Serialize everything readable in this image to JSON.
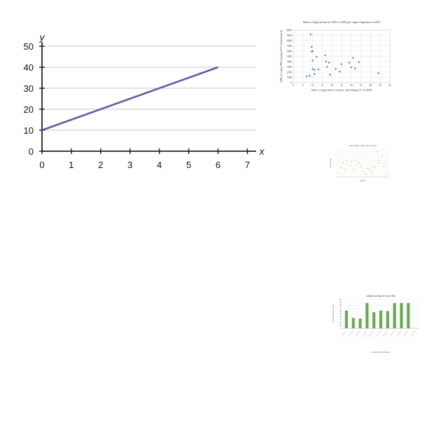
{
  "chart_data": [
    {
      "type": "line",
      "title": "",
      "xlabel": "x",
      "ylabel": "y",
      "xlim": [
        0,
        7.3
      ],
      "ylim": [
        0,
        52
      ],
      "x_ticks": [
        0,
        1,
        2,
        3,
        4,
        5,
        6,
        7
      ],
      "y_ticks": [
        0,
        10,
        20,
        30,
        40,
        50
      ],
      "grid": "horizontal",
      "colors": {
        "line": "#5b5ea6",
        "axis": "#222222",
        "grid": "#c8c8c8"
      },
      "series": [
        {
          "x": [
            0,
            6
          ],
          "y": [
            10,
            40
          ]
        }
      ]
    },
    {
      "type": "scatter",
      "title": "Share of Agriculture in GDP vs GDP per capita Argentina in 2015",
      "xlabel": "Share of Agriculture, forestry, and fishing (% of GDP)",
      "ylabel": "GDP per capita, PPP (constant 2017 international $)",
      "xlim": [
        0,
        50
      ],
      "ylim": [
        0,
        10000
      ],
      "x_ticks": [
        0,
        5,
        10,
        15,
        20,
        25,
        30,
        35,
        40,
        45,
        50
      ],
      "y_ticks": [
        0,
        1000,
        2000,
        3000,
        4000,
        5000,
        6000,
        7000,
        8000,
        9000,
        10000
      ],
      "grid": "both",
      "colors": {
        "point": "#4a7bd0",
        "grid": "#e2e2e2"
      },
      "series": [
        {
          "x": [
            9,
            9.5,
            10,
            9.6,
            10,
            12,
            10,
            8.5,
            7,
            11,
            13,
            11,
            16.5,
            17,
            18.5,
            17.5,
            19,
            22,
            24,
            25,
            29,
            30,
            31,
            32,
            34,
            44
          ],
          "y": [
            9200,
            6800,
            6000,
            5900,
            4200,
            4900,
            2600,
            1300,
            1200,
            1600,
            2500,
            2400,
            5200,
            4000,
            3800,
            3000,
            1500,
            2600,
            2100,
            3500,
            3800,
            2900,
            4700,
            2700,
            3900,
            1800
          ]
        }
      ]
    },
    {
      "type": "scatter",
      "title": "Activity Rate in 50d over 30 weeks",
      "xlabel": "Weeks",
      "ylabel": "Activity Rate",
      "xlim": [
        0,
        30
      ],
      "ylim": [
        0,
        100
      ],
      "grid": "both",
      "colors": {
        "point": "#e0c030",
        "grid": "#eeeeee"
      },
      "series": [
        {
          "x": [
            1,
            3,
            4,
            5,
            6,
            8,
            9,
            10,
            11,
            12,
            13,
            14,
            15,
            17,
            18,
            19,
            20,
            21,
            22,
            23,
            24,
            25,
            26,
            27,
            28,
            29
          ],
          "y": [
            15,
            35,
            50,
            25,
            60,
            40,
            55,
            30,
            58,
            45,
            52,
            38,
            20,
            10,
            30,
            25,
            15,
            40,
            35,
            90,
            60,
            50,
            75,
            40,
            55,
            10
          ]
        }
      ]
    },
    {
      "type": "bar",
      "title": "Inflation during the year 1985",
      "xlabel": "Countries and territories",
      "ylabel": "Consumer price index",
      "ylim": [
        0,
        100
      ],
      "y_ticks": [
        0,
        10,
        20,
        30,
        40,
        50,
        60,
        70,
        80,
        90,
        100
      ],
      "grid": "horizontal",
      "colors": {
        "bar": "#6aa84f",
        "grid": "#e6e6e6"
      },
      "categories": [
        "",
        "",
        "",
        "",
        "",
        "",
        "",
        "",
        "",
        "",
        ""
      ],
      "values": [
        62,
        36,
        34,
        88,
        56,
        62,
        60,
        88,
        88,
        88,
        0
      ]
    }
  ]
}
